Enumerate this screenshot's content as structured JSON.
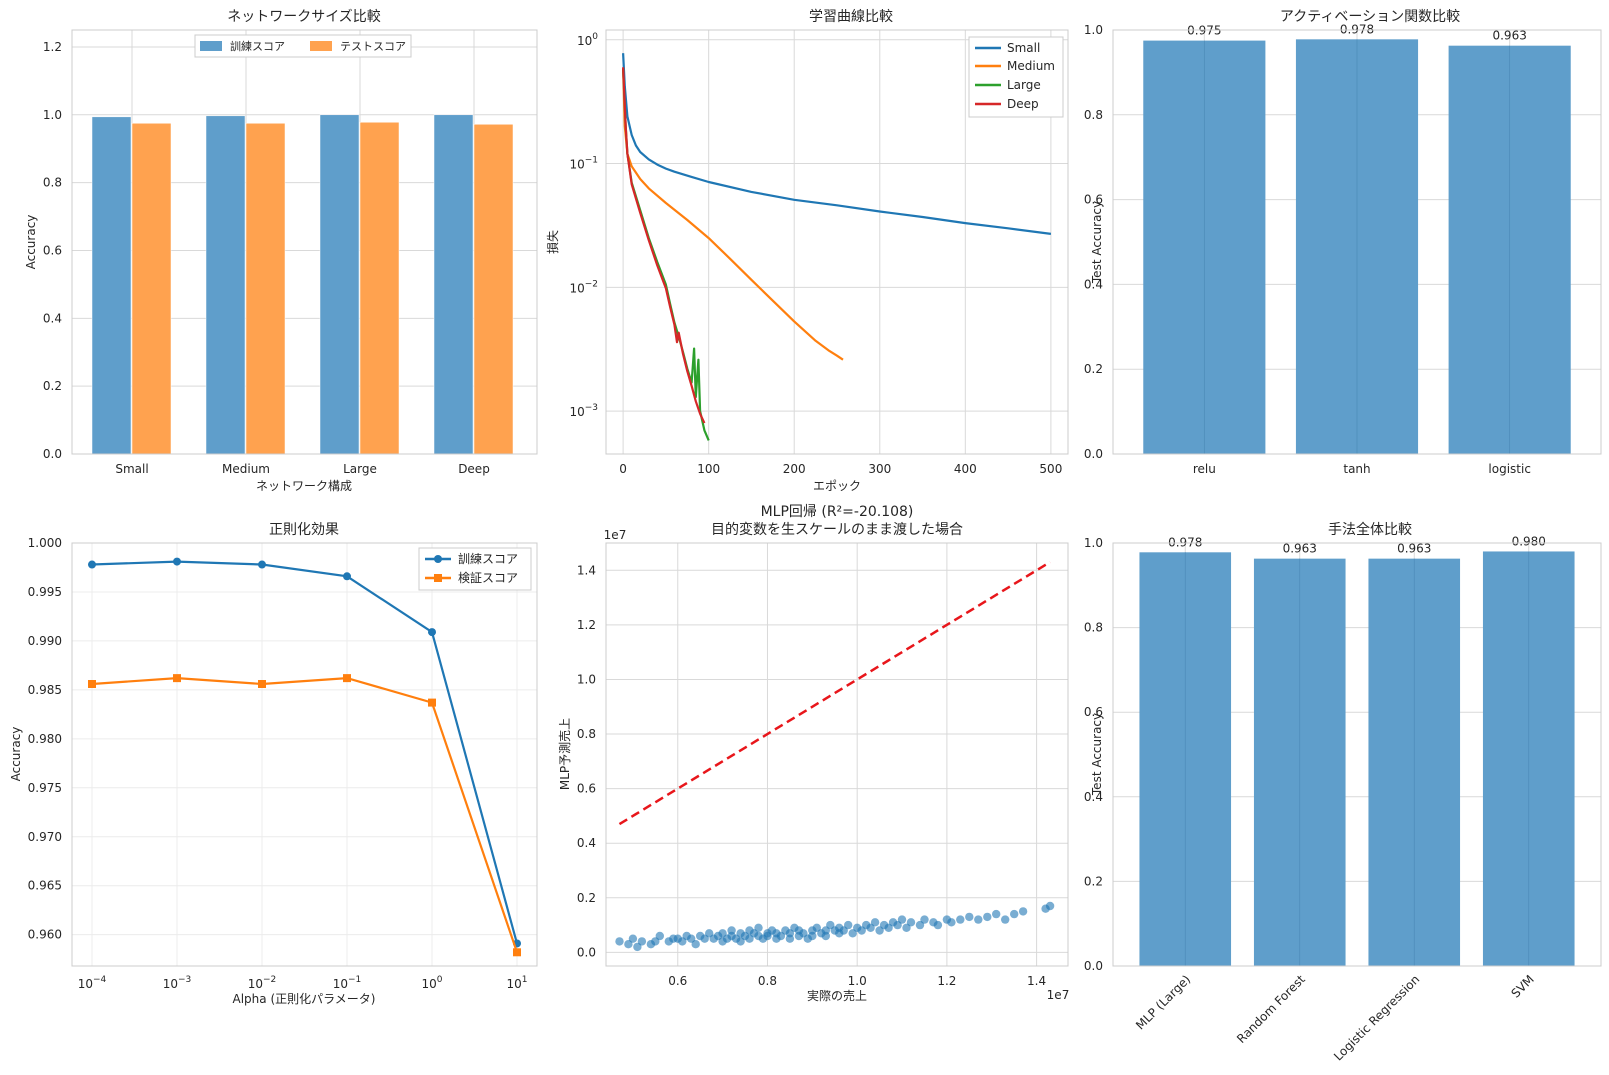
{
  "chart_data": [
    {
      "type": "bar",
      "title": "ネットワークサイズ比較",
      "xlabel": "ネットワーク構成",
      "ylabel": "Accuracy",
      "categories": [
        "Small",
        "Medium",
        "Large",
        "Deep"
      ],
      "series": [
        {
          "name": "訓練スコア",
          "values": [
            0.994,
            0.997,
            1.0,
            1.0
          ],
          "color": "#5f9ecb"
        },
        {
          "name": "テストスコア",
          "values": [
            0.975,
            0.975,
            0.978,
            0.972
          ],
          "color": "#ffa24f"
        }
      ],
      "ylim": [
        0,
        1.25
      ],
      "yticks": [
        "0.0",
        "0.2",
        "0.4",
        "0.6",
        "0.8",
        "1.0",
        "1.2"
      ],
      "legend": "top-center",
      "grid": true
    },
    {
      "type": "line",
      "title": "学習曲線比較",
      "xlabel": "エポック",
      "ylabel": "損失",
      "yscale": "log",
      "xlim": [
        -20,
        520
      ],
      "ylim": [
        0.00045,
        1.2
      ],
      "xticks": [
        "0",
        "100",
        "200",
        "300",
        "400",
        "500"
      ],
      "yticks": [
        "10^0",
        "10^-1",
        "10^-2",
        "10^-3"
      ],
      "legend": "top-right",
      "grid": true,
      "series": [
        {
          "name": "Small",
          "color": "#1f77b4",
          "x": [
            0,
            2,
            5,
            10,
            15,
            20,
            30,
            40,
            50,
            60,
            80,
            100,
            150,
            200,
            250,
            300,
            350,
            400,
            450,
            500
          ],
          "y": [
            0.78,
            0.42,
            0.24,
            0.17,
            0.14,
            0.124,
            0.108,
            0.098,
            0.091,
            0.086,
            0.078,
            0.071,
            0.059,
            0.051,
            0.046,
            0.041,
            0.037,
            0.033,
            0.03,
            0.027
          ]
        },
        {
          "name": "Medium",
          "color": "#ff7f0e",
          "x": [
            0,
            2,
            5,
            10,
            20,
            30,
            50,
            75,
            100,
            125,
            150,
            175,
            200,
            225,
            240,
            250,
            257
          ],
          "y": [
            0.58,
            0.2,
            0.12,
            0.095,
            0.075,
            0.063,
            0.048,
            0.035,
            0.025,
            0.017,
            0.0115,
            0.0078,
            0.0053,
            0.0037,
            0.0031,
            0.0028,
            0.0026
          ]
        },
        {
          "name": "Large",
          "color": "#2ca02c",
          "x": [
            0,
            3,
            5,
            10,
            20,
            30,
            40,
            50,
            55,
            60,
            65,
            70,
            75,
            80,
            83,
            85,
            88,
            90,
            95,
            100
          ],
          "y": [
            0.58,
            0.2,
            0.12,
            0.07,
            0.042,
            0.025,
            0.016,
            0.0105,
            0.0073,
            0.0052,
            0.004,
            0.003,
            0.0022,
            0.0017,
            0.0032,
            0.0013,
            0.0026,
            0.001,
            0.0007,
            0.00058
          ]
        },
        {
          "name": "Deep",
          "color": "#d62728",
          "x": [
            0,
            3,
            5,
            10,
            20,
            30,
            40,
            50,
            55,
            60,
            63,
            65,
            70,
            75,
            80,
            85,
            90,
            95
          ],
          "y": [
            0.6,
            0.2,
            0.12,
            0.068,
            0.04,
            0.024,
            0.015,
            0.0098,
            0.0069,
            0.005,
            0.0036,
            0.0043,
            0.0029,
            0.0021,
            0.0016,
            0.0012,
            0.00095,
            0.0008
          ]
        }
      ]
    },
    {
      "type": "bar",
      "title": "アクティベーション関数比較",
      "ylabel": "Test Accuracy",
      "categories": [
        "relu",
        "tanh",
        "logistic"
      ],
      "values": [
        0.975,
        0.978,
        0.963
      ],
      "data_labels": [
        "0.975",
        "0.978",
        "0.963"
      ],
      "ylim": [
        0,
        1.0
      ],
      "yticks": [
        "0.0",
        "0.2",
        "0.4",
        "0.6",
        "0.8",
        "1.0"
      ],
      "color": "#5f9ecb",
      "grid": true
    },
    {
      "type": "line",
      "title": "正則化効果",
      "xlabel": "Alpha (正則化パラメータ)",
      "ylabel": "Accuracy",
      "xscale": "log",
      "x": [
        0.0001,
        0.001,
        0.01,
        0.1,
        1,
        10
      ],
      "xticks": [
        "10^-4",
        "10^-3",
        "10^-2",
        "10^-1",
        "10^0",
        "10^1"
      ],
      "ylim": [
        0.9568,
        1.0
      ],
      "yticks": [
        "0.960",
        "0.965",
        "0.970",
        "0.975",
        "0.980",
        "0.985",
        "0.990",
        "0.995",
        "1.000"
      ],
      "legend": "top-right",
      "grid": true,
      "series": [
        {
          "name": "訓練スコア",
          "marker": "circle",
          "color": "#1f77b4",
          "values": [
            0.9978,
            0.9981,
            0.9978,
            0.9966,
            0.9909,
            0.9591
          ]
        },
        {
          "name": "検証スコア",
          "marker": "square",
          "color": "#ff7f0e",
          "values": [
            0.9856,
            0.9862,
            0.9856,
            0.9862,
            0.9837,
            0.9582
          ]
        }
      ]
    },
    {
      "type": "scatter",
      "title": "MLP回帰 (R²=-20.108)",
      "subtitle": "目的変数を生スケールのまま渡した場合",
      "xlabel": "実際の売上",
      "ylabel": "MLP予測売上",
      "x_offset_label": "1e7",
      "y_offset_label": "1e7",
      "xlim": [
        0.44,
        1.47
      ],
      "ylim": [
        -0.05,
        1.5
      ],
      "xticks": [
        "0.6",
        "0.8",
        "1.0",
        "1.2",
        "1.4"
      ],
      "yticks": [
        "0.0",
        "0.2",
        "0.4",
        "0.6",
        "0.8",
        "1.0",
        "1.2",
        "1.4"
      ],
      "reference_line": {
        "from": [
          0.47,
          0.47
        ],
        "to": [
          1.43,
          1.43
        ],
        "style": "dashed",
        "color": "#e8161b"
      },
      "color": "#1f77b4",
      "grid": true,
      "points": [
        [
          0.47,
          0.04
        ],
        [
          0.49,
          0.03
        ],
        [
          0.5,
          0.05
        ],
        [
          0.51,
          0.02
        ],
        [
          0.52,
          0.04
        ],
        [
          0.54,
          0.03
        ],
        [
          0.55,
          0.04
        ],
        [
          0.56,
          0.06
        ],
        [
          0.58,
          0.04
        ],
        [
          0.59,
          0.05
        ],
        [
          0.6,
          0.05
        ],
        [
          0.61,
          0.04
        ],
        [
          0.62,
          0.06
        ],
        [
          0.63,
          0.05
        ],
        [
          0.64,
          0.03
        ],
        [
          0.65,
          0.06
        ],
        [
          0.66,
          0.05
        ],
        [
          0.67,
          0.07
        ],
        [
          0.68,
          0.05
        ],
        [
          0.69,
          0.06
        ],
        [
          0.7,
          0.04
        ],
        [
          0.7,
          0.07
        ],
        [
          0.71,
          0.05
        ],
        [
          0.72,
          0.06
        ],
        [
          0.72,
          0.08
        ],
        [
          0.73,
          0.05
        ],
        [
          0.74,
          0.07
        ],
        [
          0.74,
          0.04
        ],
        [
          0.75,
          0.06
        ],
        [
          0.76,
          0.08
        ],
        [
          0.76,
          0.05
        ],
        [
          0.77,
          0.07
        ],
        [
          0.78,
          0.06
        ],
        [
          0.78,
          0.09
        ],
        [
          0.79,
          0.05
        ],
        [
          0.8,
          0.07
        ],
        [
          0.8,
          0.06
        ],
        [
          0.81,
          0.08
        ],
        [
          0.82,
          0.05
        ],
        [
          0.82,
          0.07
        ],
        [
          0.83,
          0.06
        ],
        [
          0.84,
          0.08
        ],
        [
          0.85,
          0.07
        ],
        [
          0.85,
          0.05
        ],
        [
          0.86,
          0.09
        ],
        [
          0.87,
          0.06
        ],
        [
          0.87,
          0.08
        ],
        [
          0.88,
          0.07
        ],
        [
          0.89,
          0.05
        ],
        [
          0.9,
          0.08
        ],
        [
          0.9,
          0.06
        ],
        [
          0.91,
          0.09
        ],
        [
          0.92,
          0.07
        ],
        [
          0.93,
          0.08
        ],
        [
          0.93,
          0.06
        ],
        [
          0.94,
          0.1
        ],
        [
          0.95,
          0.08
        ],
        [
          0.96,
          0.07
        ],
        [
          0.96,
          0.09
        ],
        [
          0.97,
          0.08
        ],
        [
          0.98,
          0.1
        ],
        [
          0.99,
          0.07
        ],
        [
          1.0,
          0.09
        ],
        [
          1.01,
          0.08
        ],
        [
          1.02,
          0.1
        ],
        [
          1.03,
          0.09
        ],
        [
          1.04,
          0.11
        ],
        [
          1.05,
          0.08
        ],
        [
          1.06,
          0.1
        ],
        [
          1.07,
          0.09
        ],
        [
          1.08,
          0.11
        ],
        [
          1.09,
          0.1
        ],
        [
          1.1,
          0.12
        ],
        [
          1.11,
          0.09
        ],
        [
          1.12,
          0.11
        ],
        [
          1.14,
          0.1
        ],
        [
          1.15,
          0.12
        ],
        [
          1.17,
          0.11
        ],
        [
          1.18,
          0.1
        ],
        [
          1.2,
          0.12
        ],
        [
          1.21,
          0.11
        ],
        [
          1.23,
          0.12
        ],
        [
          1.25,
          0.13
        ],
        [
          1.27,
          0.12
        ],
        [
          1.29,
          0.13
        ],
        [
          1.31,
          0.14
        ],
        [
          1.33,
          0.12
        ],
        [
          1.35,
          0.14
        ],
        [
          1.37,
          0.15
        ],
        [
          1.42,
          0.16
        ],
        [
          1.43,
          0.17
        ]
      ]
    },
    {
      "type": "bar",
      "title": "手法全体比較",
      "ylabel": "Test Accuracy",
      "categories": [
        "MLP (Large)",
        "Random Forest",
        "Logistic Regression",
        "SVM"
      ],
      "values": [
        0.978,
        0.963,
        0.963,
        0.98
      ],
      "data_labels": [
        "0.978",
        "0.963",
        "0.963",
        "0.980"
      ],
      "ylim": [
        0,
        1.0
      ],
      "yticks": [
        "0.0",
        "0.2",
        "0.4",
        "0.6",
        "0.8",
        "1.0"
      ],
      "color": "#5f9ecb",
      "grid": true
    }
  ]
}
